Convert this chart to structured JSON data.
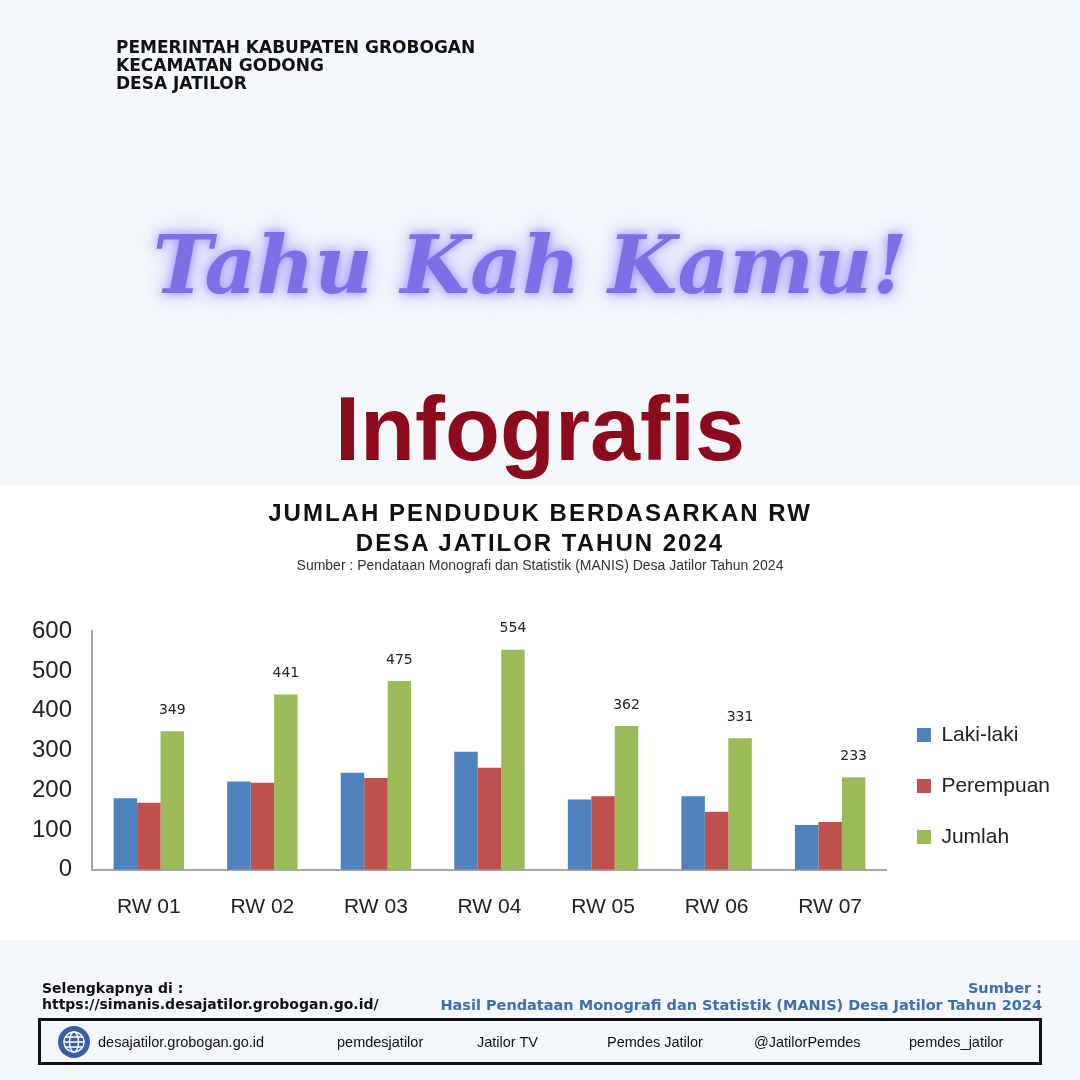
{
  "chart_data": {
    "type": "bar",
    "title": "JUMLAH PENDUDUK BERDASARKAN RW DESA JATILOR TAHUN 2024",
    "subtitle": "Sumber : Pendataan Monografi dan Statistik (MANIS) Desa Jatilor Tahun 2024",
    "categories": [
      "RW 01",
      "RW 02",
      "RW 03",
      "RW 04",
      "RW 05",
      "RW 06",
      "RW 07"
    ],
    "series": [
      {
        "name": "Laki-laki",
        "color": "#4f81bd",
        "values": [
          180,
          222,
          244,
          297,
          177,
          185,
          113
        ]
      },
      {
        "name": "Perempuan",
        "color": "#c0504d",
        "values": [
          169,
          219,
          231,
          257,
          185,
          146,
          120
        ]
      },
      {
        "name": "Jumlah",
        "color": "#9bbb59",
        "values": [
          349,
          441,
          475,
          554,
          362,
          331,
          233
        ],
        "value_labels": [
          "349",
          "441",
          "475",
          "554",
          "362",
          "331",
          "233"
        ]
      }
    ],
    "ylim": [
      0,
      600
    ],
    "yticks": [
      0,
      100,
      200,
      300,
      400,
      500,
      600
    ],
    "grid": false,
    "legend": "right",
    "annotations": [
      "PEMERINTAH KABUPATEN GROBOGAN",
      "KECAMATAN GODONG",
      "DESA JATILOR",
      "Tahu Kah Kamu!",
      "Infografis",
      "Selengkapnya di :",
      "https://simanis.desajatilor.grobogan.go.id/",
      "Sumber :",
      "Hasil Pendataan Monografi dan Statistik (MANIS) Desa Jatilor Tahun 2024",
      "desajatilor.grobogan.go.id",
      "pemdesjatilor",
      "Jatilor TV",
      "Pemdes Jatilor",
      "@JatilorPemdes",
      "pemdes_jatilor"
    ]
  }
}
